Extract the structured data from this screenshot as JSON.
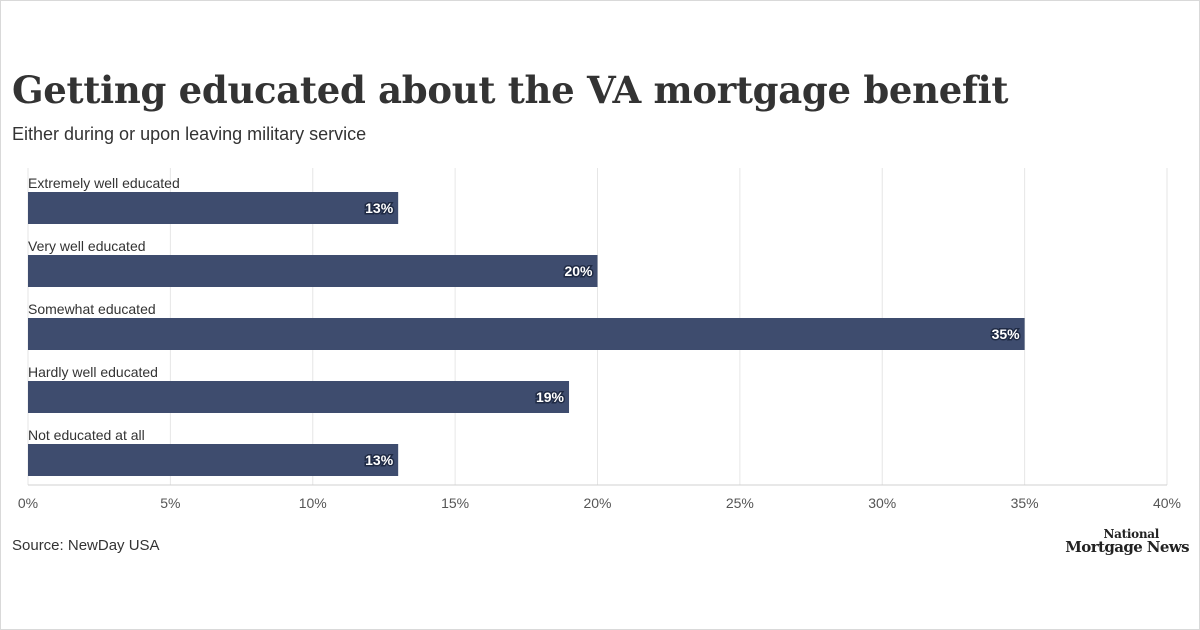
{
  "title": "Getting educated about the VA mortgage benefit",
  "subtitle": "Either during or upon leaving military service",
  "source": "Source: NewDay USA",
  "logo": {
    "line1": "National",
    "line2": "Mortgage News"
  },
  "colors": {
    "bar": "#3e4c6e",
    "grid": "#e6e6e6",
    "text": "#333333"
  },
  "chart_data": {
    "type": "bar",
    "orientation": "horizontal",
    "title": "Getting educated about the VA mortgage benefit",
    "subtitle": "Either during or upon leaving military service",
    "categories": [
      "Extremely well educated",
      "Very well educated",
      "Somewhat educated",
      "Hardly well educated",
      "Not educated at all"
    ],
    "values": [
      13,
      20,
      35,
      19,
      13
    ],
    "value_labels": [
      "13%",
      "20%",
      "35%",
      "19%",
      "13%"
    ],
    "xlim": [
      0,
      40
    ],
    "xticks": [
      0,
      5,
      10,
      15,
      20,
      25,
      30,
      35,
      40
    ],
    "xtick_labels": [
      "0%",
      "5%",
      "10%",
      "15%",
      "20%",
      "25%",
      "30%",
      "35%",
      "40%"
    ],
    "xlabel": "",
    "ylabel": "",
    "grid": true
  }
}
